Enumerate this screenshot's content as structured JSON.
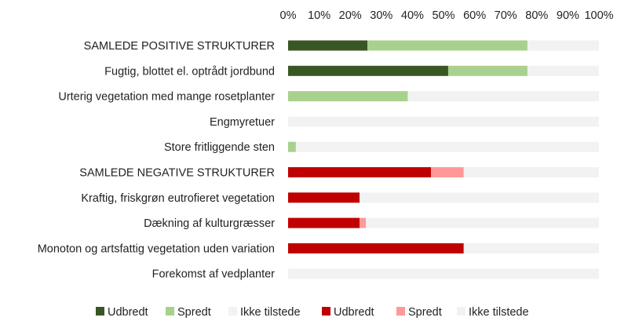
{
  "chart_data": {
    "type": "bar",
    "orientation": "horizontal",
    "stacked": "percent",
    "categories": [
      "SAMLEDE POSITIVE STRUKTURER",
      "Fugtig, blottet el. optrådt jordbund",
      "Urterig vegetation med mange rosetplanter",
      "Engmyretuer",
      "Store fritliggende sten",
      "SAMLEDE NEGATIVE STRUKTURER",
      "Kraftig, friskgrøn eutrofieret vegetation",
      "Dækning af kulturgræsser",
      "Monoton og artsfattig vegetation uden variation",
      "Forekomst af vedplanter"
    ],
    "series": [
      {
        "name": "Udbredt",
        "color": "#385723",
        "values": [
          25.5,
          51.5,
          0,
          0,
          0,
          null,
          null,
          null,
          null,
          null
        ]
      },
      {
        "name": "Spredt",
        "color": "#a9d18e",
        "values": [
          51.5,
          25.5,
          38.5,
          0,
          2.5,
          null,
          null,
          null,
          null,
          null
        ]
      },
      {
        "name": "Ikke tilstede",
        "color": "#f2f2f2",
        "values": [
          23,
          23,
          61.5,
          100,
          97.5,
          null,
          null,
          null,
          null,
          null
        ]
      },
      {
        "name": "Udbredt",
        "color": "#c00000",
        "values": [
          null,
          null,
          null,
          null,
          null,
          46,
          23,
          23,
          56.5,
          0
        ]
      },
      {
        "name": "Spredt",
        "color": "#ff9999",
        "values": [
          null,
          null,
          null,
          null,
          null,
          10.5,
          0,
          2,
          0,
          0
        ]
      },
      {
        "name": "Ikke tilstede",
        "color": "#f2f2f2",
        "values": [
          null,
          null,
          null,
          null,
          null,
          43.5,
          77,
          75,
          43.5,
          100
        ]
      }
    ],
    "x_ticks": [
      "0%",
      "10%",
      "20%",
      "30%",
      "40%",
      "50%",
      "60%",
      "70%",
      "80%",
      "90%",
      "100%"
    ],
    "xlim": [
      0,
      100
    ],
    "legend_position": "bottom",
    "grid": false,
    "title": "",
    "xlabel": "",
    "ylabel": ""
  }
}
